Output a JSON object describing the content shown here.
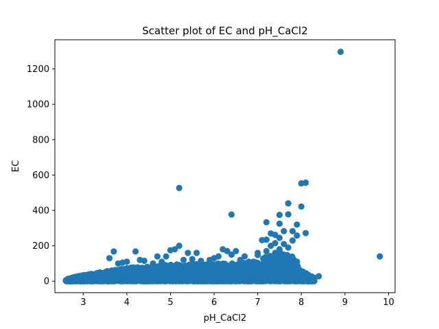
{
  "chart_data": {
    "type": "scatter",
    "title": "Scatter plot of EC and pH_CaCl2",
    "xlabel": "pH_CaCl2",
    "ylabel": "EC",
    "xlim": [
      2.35,
      10.15
    ],
    "ylim": [
      -65,
      1365
    ],
    "xticks": [
      3,
      4,
      5,
      6,
      7,
      8,
      9,
      10
    ],
    "yticks": [
      0,
      200,
      400,
      600,
      800,
      1000,
      1200
    ],
    "grid": false,
    "legend": "none",
    "color": "#1f77b4",
    "points": [
      [
        8.9,
        1297
      ],
      [
        9.8,
        140
      ],
      [
        5.2,
        527
      ],
      [
        6.4,
        377
      ],
      [
        8.0,
        553
      ],
      [
        8.1,
        557
      ],
      [
        8.0,
        422
      ],
      [
        7.7,
        440
      ],
      [
        7.5,
        375
      ],
      [
        7.7,
        378
      ],
      [
        7.2,
        333
      ],
      [
        7.5,
        325
      ],
      [
        7.9,
        320
      ],
      [
        8.1,
        272
      ],
      [
        7.6,
        283
      ],
      [
        7.8,
        283
      ],
      [
        7.3,
        270
      ],
      [
        7.4,
        262
      ],
      [
        7.9,
        258
      ],
      [
        7.5,
        245
      ],
      [
        7.2,
        235
      ],
      [
        7.1,
        232
      ],
      [
        7.8,
        230
      ],
      [
        7.4,
        215
      ],
      [
        7.6,
        210
      ],
      [
        7.3,
        200
      ],
      [
        7.7,
        190
      ],
      [
        7.5,
        180
      ],
      [
        7.2,
        170
      ],
      [
        7.4,
        160
      ],
      [
        7.6,
        150
      ],
      [
        7.3,
        140
      ],
      [
        7.8,
        130
      ],
      [
        7.5,
        120
      ],
      [
        7.0,
        160
      ],
      [
        7.0,
        148
      ],
      [
        7.9,
        110
      ],
      [
        8.4,
        28
      ],
      [
        8.2,
        22
      ],
      [
        8.0,
        20
      ],
      [
        8.1,
        12
      ],
      [
        8.3,
        18
      ],
      [
        5.2,
        200
      ],
      [
        5.0,
        175
      ],
      [
        5.1,
        180
      ],
      [
        5.4,
        160
      ],
      [
        5.6,
        160
      ],
      [
        4.7,
        140
      ],
      [
        4.9,
        140
      ],
      [
        3.7,
        168
      ],
      [
        4.2,
        168
      ],
      [
        3.6,
        130
      ],
      [
        3.8,
        100
      ],
      [
        3.9,
        105
      ],
      [
        4.0,
        110
      ],
      [
        4.3,
        120
      ],
      [
        4.4,
        115
      ],
      [
        4.6,
        100
      ],
      [
        4.8,
        110
      ],
      [
        5.3,
        120
      ],
      [
        5.5,
        125
      ],
      [
        5.7,
        115
      ],
      [
        5.9,
        120
      ],
      [
        6.0,
        130
      ],
      [
        6.1,
        140
      ],
      [
        6.2,
        180
      ],
      [
        6.3,
        170
      ],
      [
        6.5,
        170
      ],
      [
        6.4,
        150
      ],
      [
        6.7,
        140
      ],
      [
        6.6,
        120
      ],
      [
        6.8,
        110
      ],
      [
        6.9,
        110
      ],
      [
        7.0,
        100
      ]
    ],
    "dense_band": {
      "x_range": [
        2.6,
        8.3
      ],
      "y_base": [
        0,
        8
      ],
      "y_upper_at_x": [
        [
          2.6,
          12
        ],
        [
          3.0,
          35
        ],
        [
          3.5,
          55
        ],
        [
          4.0,
          75
        ],
        [
          4.5,
          85
        ],
        [
          5.0,
          95
        ],
        [
          5.5,
          95
        ],
        [
          6.0,
          100
        ],
        [
          6.5,
          100
        ],
        [
          7.0,
          110
        ],
        [
          7.2,
          140
        ],
        [
          7.5,
          160
        ],
        [
          7.8,
          140
        ],
        [
          8.0,
          60
        ],
        [
          8.3,
          20
        ]
      ]
    }
  }
}
